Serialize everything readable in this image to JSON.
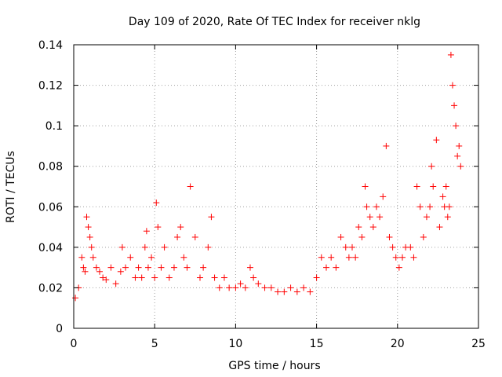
{
  "chart_data": {
    "type": "scatter",
    "title": "Day 109 of 2020, Rate Of TEC Index for receiver nklg",
    "xlabel": "GPS time / hours",
    "ylabel": "ROTI / TECUs",
    "xlim": [
      0,
      25
    ],
    "ylim": [
      0,
      0.14
    ],
    "x_ticks": [
      "0",
      "5",
      "10",
      "15",
      "20",
      "25"
    ],
    "y_ticks": [
      "0",
      "0.02",
      "0.04",
      "0.06",
      "0.08",
      "0.1",
      "0.12",
      "0.14"
    ],
    "grid": true,
    "marker": "plus",
    "colors": {
      "points": "#ff0000",
      "grid": "#a0a0a0",
      "axes": "#000000"
    },
    "series": [
      {
        "x": [
          0.1,
          0.3,
          0.5,
          0.6,
          0.7,
          0.8,
          0.9,
          1.0,
          1.1,
          1.2,
          1.4,
          1.6,
          1.8,
          2.0,
          2.3,
          2.6,
          2.9,
          3.0,
          3.2,
          3.5,
          3.8,
          4.0,
          4.2,
          4.4,
          4.5,
          4.6,
          4.8,
          5.0,
          5.1,
          5.2,
          5.4,
          5.6,
          5.9,
          6.2,
          6.4,
          6.6,
          6.8,
          7.0,
          7.2,
          7.5,
          7.8,
          8.0,
          8.3,
          8.5,
          8.7,
          9.0,
          9.3,
          9.6,
          10.0,
          10.3,
          10.6,
          10.9,
          11.1,
          11.4,
          11.8,
          12.2,
          12.6,
          13.0,
          13.4,
          13.8,
          14.2,
          14.6,
          15.0,
          15.3,
          15.6,
          15.9,
          16.2,
          16.5,
          16.8,
          17.0,
          17.2,
          17.4,
          17.6,
          17.8,
          18.0,
          18.1,
          18.3,
          18.5,
          18.7,
          18.9,
          19.1,
          19.3,
          19.5,
          19.7,
          19.9,
          20.1,
          20.3,
          20.5,
          20.8,
          21.0,
          21.2,
          21.4,
          21.6,
          21.8,
          22.0,
          22.1,
          22.2,
          22.4,
          22.6,
          22.8,
          22.9,
          23.0,
          23.1,
          23.2,
          23.3,
          23.4,
          23.5,
          23.6,
          23.7,
          23.8,
          23.9
        ],
        "y": [
          0.015,
          0.02,
          0.035,
          0.03,
          0.028,
          0.055,
          0.05,
          0.045,
          0.04,
          0.035,
          0.03,
          0.028,
          0.025,
          0.024,
          0.03,
          0.022,
          0.028,
          0.04,
          0.03,
          0.035,
          0.025,
          0.03,
          0.025,
          0.04,
          0.048,
          0.03,
          0.035,
          0.025,
          0.062,
          0.05,
          0.03,
          0.04,
          0.025,
          0.03,
          0.045,
          0.05,
          0.035,
          0.03,
          0.07,
          0.045,
          0.025,
          0.03,
          0.04,
          0.055,
          0.025,
          0.02,
          0.025,
          0.02,
          0.02,
          0.022,
          0.02,
          0.03,
          0.025,
          0.022,
          0.02,
          0.02,
          0.018,
          0.018,
          0.02,
          0.018,
          0.02,
          0.018,
          0.025,
          0.035,
          0.03,
          0.035,
          0.03,
          0.045,
          0.04,
          0.035,
          0.04,
          0.035,
          0.05,
          0.045,
          0.07,
          0.06,
          0.055,
          0.05,
          0.06,
          0.055,
          0.065,
          0.09,
          0.045,
          0.04,
          0.035,
          0.03,
          0.035,
          0.04,
          0.04,
          0.035,
          0.07,
          0.06,
          0.045,
          0.055,
          0.06,
          0.08,
          0.07,
          0.093,
          0.05,
          0.065,
          0.06,
          0.07,
          0.055,
          0.06,
          0.135,
          0.12,
          0.11,
          0.1,
          0.085,
          0.09,
          0.08
        ]
      }
    ]
  }
}
